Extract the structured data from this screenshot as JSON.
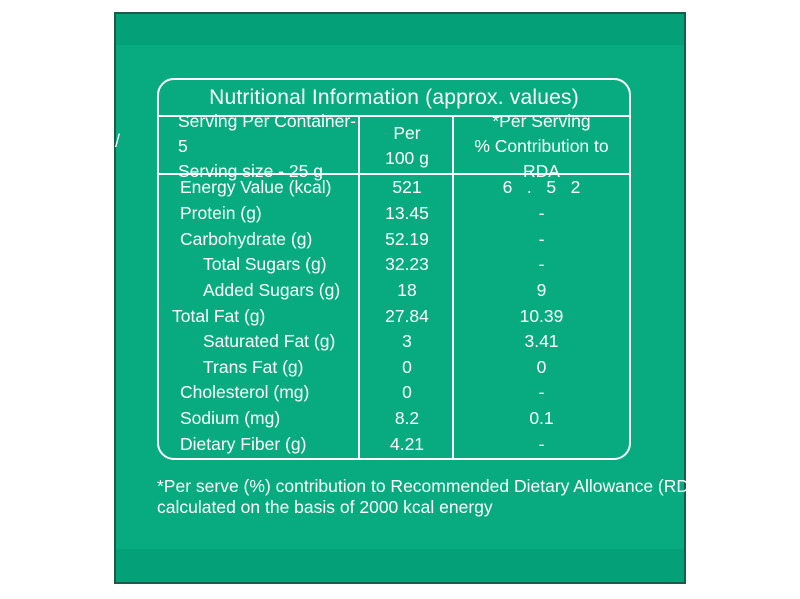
{
  "colors": {
    "page_background": "#ffffff",
    "panel_inner_green": "#07ab7f",
    "panel_band_green": "#04a178",
    "panel_border": "#1e5a49",
    "table_border": "#ffffff",
    "text": "#ffffff"
  },
  "panel": {
    "mark": "/"
  },
  "table": {
    "title": "Nutritional Information (approx. values)",
    "header": {
      "serving_line1": "Serving Per Container-5",
      "serving_line2": "Serving size - 25 g",
      "per_line1": "Per",
      "per_line2": "100 g",
      "rda_line1": "*Per Serving",
      "rda_line2": "% Contribution to RDA"
    },
    "rows": [
      {
        "label": "Energy Value (kcal)",
        "per_100g": "521",
        "rda": "6   .   5   2"
      },
      {
        "label": "Protein (g)",
        "per_100g": "13.45",
        "rda": "-"
      },
      {
        "label": "Carbohydrate (g)",
        "per_100g": "52.19",
        "rda": "-"
      },
      {
        "label": "Total Sugars (g)",
        "per_100g": "32.23",
        "rda": "-"
      },
      {
        "label": "Added Sugars (g)",
        "per_100g": "18",
        "rda": "9"
      },
      {
        "label": "Total Fat (g)",
        "per_100g": "27.84",
        "rda": "10.39"
      },
      {
        "label": "Saturated Fat (g)",
        "per_100g": "3",
        "rda": "3.41"
      },
      {
        "label": "Trans Fat (g)",
        "per_100g": "0",
        "rda": "0"
      },
      {
        "label": "Cholesterol (mg)",
        "per_100g": "0",
        "rda": "-"
      },
      {
        "label": "Sodium (mg)",
        "per_100g": "8.2",
        "rda": "0.1"
      },
      {
        "label": "Dietary Fiber (g)",
        "per_100g": "4.21",
        "rda": "-"
      }
    ],
    "footnote_line1": "*Per serve (%) contribution to Recommended Dietary Allowance (RDA)",
    "footnote_line2": "calculated on the basis of 2000 kcal energy"
  }
}
